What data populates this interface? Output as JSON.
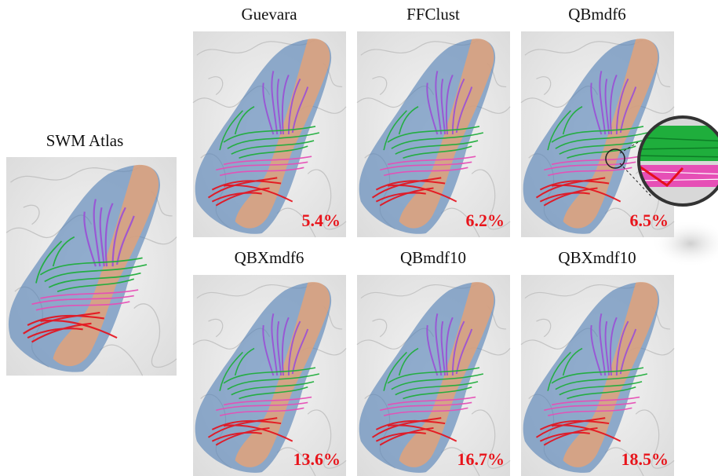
{
  "atlas": {
    "title": "SWM Atlas"
  },
  "panels": [
    {
      "title": "Guevara",
      "label": "5.4%"
    },
    {
      "title": "FFClust",
      "label": "6.2%"
    },
    {
      "title": "QBmdf6",
      "label": "6.5%"
    },
    {
      "title": "QBXmdf6",
      "label": "13.6%"
    },
    {
      "title": "QBmdf10",
      "label": "16.7%"
    },
    {
      "title": "QBXmdf10",
      "label": "18.5%"
    }
  ]
}
